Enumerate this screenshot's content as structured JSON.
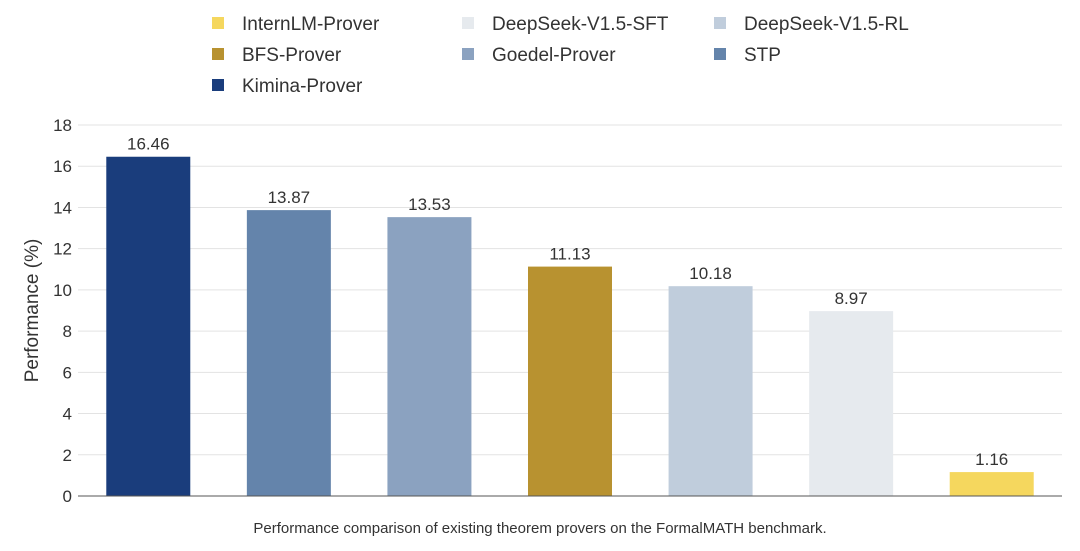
{
  "chart_data": {
    "type": "bar",
    "categories": [
      "Kimina-Prover",
      "STP",
      "Goedel-Prover",
      "BFS-Prover",
      "DeepSeek-V1.5-RL",
      "DeepSeek-V1.5-SFT",
      "InternLM-Prover"
    ],
    "values": [
      16.46,
      13.87,
      13.53,
      11.13,
      10.18,
      8.97,
      1.16
    ],
    "value_labels": [
      "16.46",
      "13.87",
      "13.53",
      "11.13",
      "10.18",
      "8.97",
      "1.16"
    ],
    "colors": [
      "#1a3d7c",
      "#6484ab",
      "#8ba2c0",
      "#b89230",
      "#c0cddc",
      "#e6eaee",
      "#f5d75e"
    ],
    "legend_order": [
      6,
      5,
      4,
      3,
      2,
      1,
      0
    ],
    "ylabel": "Performance (%)",
    "xlabel": "",
    "ylim": [
      0,
      18
    ],
    "yticks": [
      0,
      2,
      4,
      6,
      8,
      10,
      12,
      14,
      16,
      18
    ],
    "grid": true,
    "legend_position": "top"
  },
  "caption": "Performance comparison of existing theorem provers on the FormalMATH benchmark."
}
